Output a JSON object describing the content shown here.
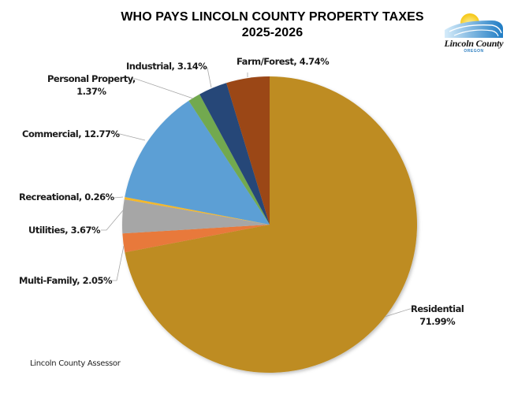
{
  "chart_data": {
    "type": "pie",
    "title": "WHO PAYS LINCOLN COUNTY PROPERTY TAXES",
    "subtitle": "2025-2026",
    "start_angle": "12 o'clock",
    "direction": "clockwise",
    "slices": [
      {
        "label": "Residential",
        "value": 71.99,
        "display": "71.99%",
        "color": "#be8c20"
      },
      {
        "label": "Multi-Family",
        "value": 2.05,
        "display": "2.05%",
        "color": "#e8793b"
      },
      {
        "label": "Utilities",
        "value": 3.67,
        "display": "3.67%",
        "color": "#a6a6a6"
      },
      {
        "label": "Recreational",
        "value": 0.26,
        "display": "0.26%",
        "color": "#f5b82a"
      },
      {
        "label": "Commercial",
        "value": 12.77,
        "display": "12.77%",
        "color": "#5b9fd5"
      },
      {
        "label": "Personal Property",
        "value": 1.37,
        "display": "1.37%",
        "color": "#72a94f"
      },
      {
        "label": "Industrial",
        "value": 3.14,
        "display": "3.14%",
        "color": "#264778"
      },
      {
        "label": "Farm/Forest",
        "value": 4.74,
        "display": "4.74%",
        "color": "#9b4719"
      }
    ],
    "legend": "none (data labels with leader lines)"
  },
  "header": {
    "title_line1": "WHO PAYS LINCOLN COUNTY PROPERTY TAXES",
    "title_line2": "2025-2026"
  },
  "logo": {
    "name": "Lincoln County",
    "subtitle": "OREGON"
  },
  "labels": {
    "residential_name": "Residential",
    "residential_value": "71.99%",
    "multifamily": "Multi-Family, 2.05%",
    "utilities": "Utilities, 3.67%",
    "recreational": "Recreational, 0.26%",
    "commercial": "Commercial, 12.77%",
    "personal_name": "Personal Property,",
    "personal_value": "1.37%",
    "industrial": "Industrial, 3.14%",
    "farmforest": "Farm/Forest, 4.74%"
  },
  "footer": {
    "source": "Lincoln County Assessor"
  }
}
